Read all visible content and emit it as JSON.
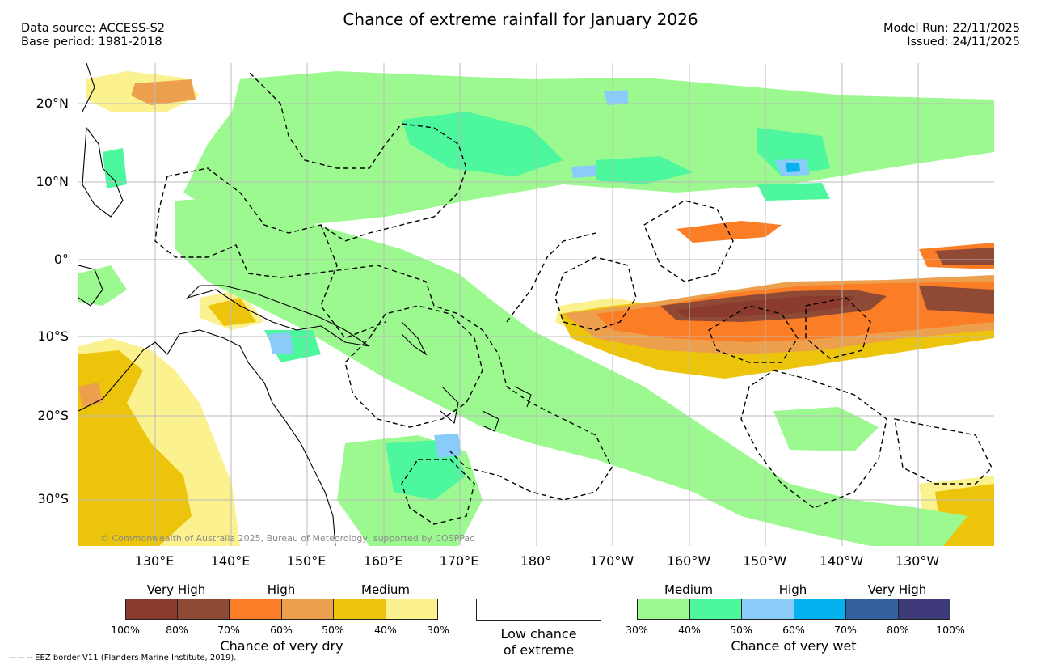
{
  "header": {
    "title": "Chance of extreme rainfall for January 2026",
    "data_source": "Data source: ACCESS-S2",
    "base_period": "Base period: 1981-2018",
    "model_run": "Model Run: 22/11/2025",
    "issued": "Issued: 24/11/2025"
  },
  "map": {
    "lat_labels": [
      "20°N",
      "10°N",
      "0°",
      "10°S",
      "20°S",
      "30°S"
    ],
    "lon_labels": [
      "130°E",
      "140°E",
      "150°E",
      "160°E",
      "170°E",
      "180°",
      "170°W",
      "160°W",
      "150°W",
      "140°W",
      "130°W"
    ],
    "credit": "© Commonwealth of Australia 2025, Bureau of Meteorology, supported by COSPPac"
  },
  "legend": {
    "dry": {
      "headers": [
        "Very High",
        "High",
        "Medium"
      ],
      "ticks": [
        "100%",
        "80%",
        "70%",
        "60%",
        "50%",
        "40%",
        "30%"
      ],
      "colors": [
        "#8b3a2e",
        "#8f4a35",
        "#fb7d25",
        "#ec9f4c",
        "#ebc40b",
        "#fcf18f"
      ],
      "title": "Chance of very dry"
    },
    "neutral": {
      "title_line1": "Low chance",
      "title_line2": "of extreme"
    },
    "wet": {
      "headers": [
        "Medium",
        "High",
        "Very High"
      ],
      "ticks": [
        "30%",
        "40%",
        "50%",
        "60%",
        "70%",
        "80%",
        "100%"
      ],
      "colors": [
        "#9cf98f",
        "#4cf79e",
        "#89ccfa",
        "#05b2ef",
        "#3361a0",
        "#3e3a7a"
      ],
      "title": "Chance of very wet"
    }
  },
  "footer": "--  --  -- EEZ border V11 (Flanders Marine Institute, 2019)."
}
